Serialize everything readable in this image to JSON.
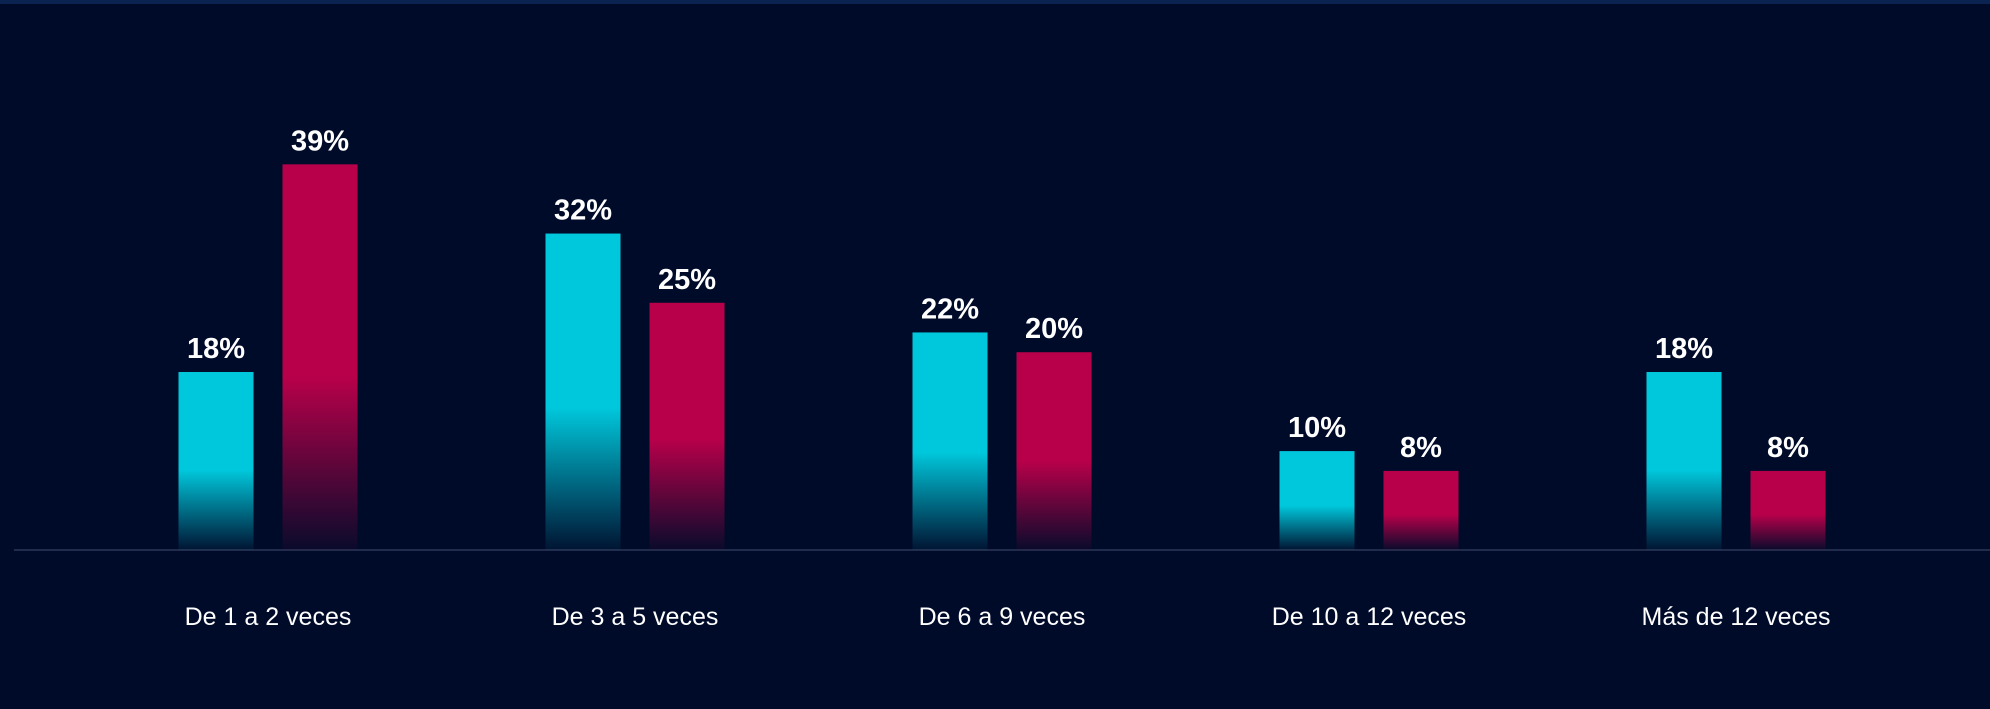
{
  "chart_data": {
    "type": "bar",
    "categories": [
      "De 1 a 2 veces",
      "De 3 a 5 veces",
      "De 6 a 9 veces",
      "De 10 a 12 veces",
      "Más de 12 veces"
    ],
    "series": [
      {
        "color": "#00c8dc",
        "values": [
          18,
          32,
          22,
          10,
          18
        ],
        "value_labels": [
          "18%",
          "32%",
          "22%",
          "10%",
          "18%"
        ]
      },
      {
        "color": "#b8004a",
        "values": [
          39,
          25,
          20,
          8,
          8
        ],
        "value_labels": [
          "39%",
          "25%",
          "20%",
          "8%",
          "8%"
        ]
      }
    ],
    "ylim": [
      0,
      45
    ]
  }
}
